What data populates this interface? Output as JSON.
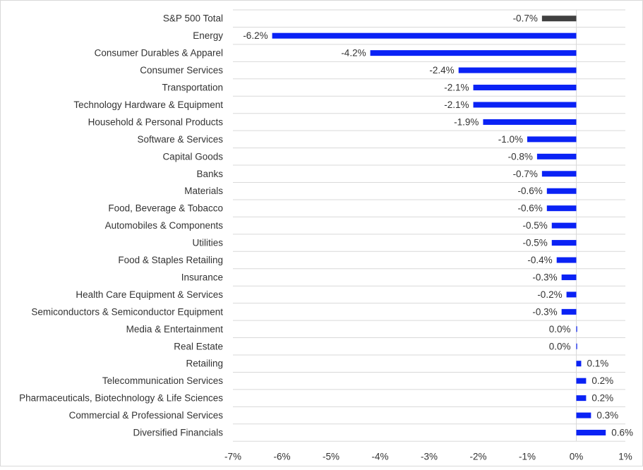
{
  "chart_data": {
    "type": "bar",
    "orientation": "horizontal",
    "categories": [
      "S&P 500 Total",
      "Energy",
      "Consumer Durables & Apparel",
      "Consumer Services",
      "Transportation",
      "Technology Hardware & Equipment",
      "Household & Personal Products",
      "Software & Services",
      "Capital Goods",
      "Banks",
      "Materials",
      "Food, Beverage & Tobacco",
      "Automobiles & Components",
      "Utilities",
      "Food & Staples Retailing",
      "Insurance",
      "Health Care Equipment & Services",
      "Semiconductors & Semiconductor Equipment",
      "Media & Entertainment",
      "Real Estate",
      "Retailing",
      "Telecommunication Services",
      "Pharmaceuticals, Biotechnology & Life Sciences",
      "Commercial  & Professional Services",
      "Diversified Financials"
    ],
    "values": [
      -0.7,
      -6.2,
      -4.2,
      -2.4,
      -2.1,
      -2.1,
      -1.9,
      -1.0,
      -0.8,
      -0.7,
      -0.6,
      -0.6,
      -0.5,
      -0.5,
      -0.4,
      -0.3,
      -0.2,
      -0.3,
      0.0,
      0.0,
      0.1,
      0.2,
      0.2,
      0.3,
      0.6
    ],
    "value_labels": [
      "-0.7%",
      "-6.2%",
      "-4.2%",
      "-2.4%",
      "-2.1%",
      "-2.1%",
      "-1.9%",
      "-1.0%",
      "-0.8%",
      "-0.7%",
      "-0.6%",
      "-0.6%",
      "-0.5%",
      "-0.5%",
      "-0.4%",
      "-0.3%",
      "-0.2%",
      "-0.3%",
      "0.0%",
      "0.0%",
      "0.1%",
      "0.2%",
      "0.2%",
      "0.3%",
      "0.6%"
    ],
    "xlim": [
      -7,
      1
    ],
    "x_ticks": [
      -7,
      -6,
      -5,
      -4,
      -3,
      -2,
      -1,
      0,
      1
    ],
    "x_tick_labels": [
      "-7%",
      "-6%",
      "-5%",
      "-4%",
      "-3%",
      "-2%",
      "-1%",
      "0%",
      "1%"
    ],
    "title": "",
    "xlabel": "",
    "ylabel": "",
    "grid": "horizontal",
    "colors": {
      "highlight": "#404040",
      "bar": "#0a22f5",
      "grid": "#d9d9d9",
      "text": "#333333"
    }
  }
}
